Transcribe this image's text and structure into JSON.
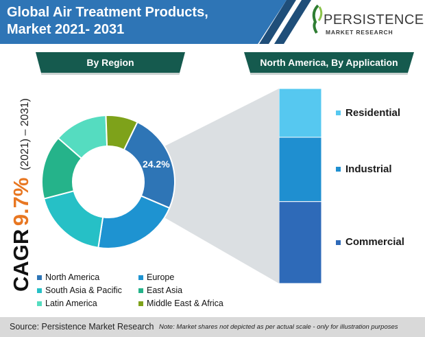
{
  "header": {
    "title_line1": "Global Air Treatment Products,",
    "title_line2": "Market 2021- 2031"
  },
  "logo": {
    "name": "PERSISTENCE",
    "subtitle": "MARKET RESEARCH"
  },
  "sections": {
    "left": "By Region",
    "right": "North America, By Application"
  },
  "cagr": {
    "label": "CAGR",
    "value": "9.7%",
    "period": "(2021) – 2031)"
  },
  "footer": {
    "source": "Source: Persistence Market Research",
    "note": "Note: Market shares not depicted as per actual scale - only for illustration purposes"
  },
  "chart_data": [
    {
      "type": "pie",
      "donut": true,
      "title": "By Region",
      "labels": [
        "North America",
        "Europe",
        "South Asia & Pacific",
        "East Asia",
        "Latin America",
        "Middle East & Africa"
      ],
      "values": [
        24.2,
        21.0,
        18.5,
        15.5,
        13.0,
        7.8
      ],
      "colors": [
        "#2e75b6",
        "#1e93d1",
        "#26c0c6",
        "#25b38a",
        "#55dcc0",
        "#7ea21a"
      ],
      "data_labels": [
        "24.2%",
        "",
        "",
        "",
        "",
        ""
      ],
      "legend_placement": "bottom"
    },
    {
      "type": "bar",
      "stacked": true,
      "title": "North America, By Application",
      "categories": [
        "Residential",
        "Industrial",
        "Commercial"
      ],
      "values": [
        25,
        33,
        42
      ],
      "colors": [
        "#56c8f0",
        "#1f8fd0",
        "#2e6ab8"
      ],
      "legend_placement": "right"
    }
  ]
}
